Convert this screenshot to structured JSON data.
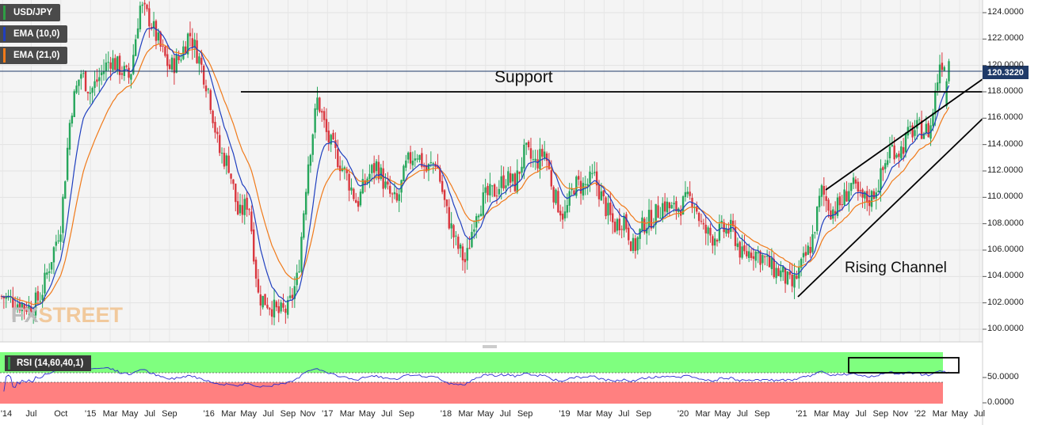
{
  "legend": {
    "symbol": "USD/JPY",
    "ema10": "EMA (10,0)",
    "ema21": "EMA (21,0)",
    "rsi": "RSI (14,60,40,1)"
  },
  "colors": {
    "up": "#26a65b",
    "down": "#d9363e",
    "ema10": "#1f3fbf",
    "ema21": "#f07a1a",
    "rsi_upper_zone": "#7fff7f",
    "rsi_lower_zone": "#ff8080",
    "rsi_line": "#2a2ad0",
    "price_tag": "#1f3a68"
  },
  "last_price": "120.3220",
  "annotations": {
    "support": "Support",
    "rising_channel": "Rising Channel"
  },
  "watermark": {
    "part1": "FX",
    "part2": "STREET"
  },
  "chart_data": [
    {
      "type": "candlestick",
      "title": "USD/JPY",
      "series": [
        {
          "name": "EMA (10,0)"
        },
        {
          "name": "EMA (21,0)"
        }
      ],
      "ylim": [
        98.8,
        125.8
      ],
      "yticks": [
        "100.0000",
        "102.0000",
        "104.0000",
        "106.0000",
        "108.0000",
        "110.0000",
        "112.0000",
        "114.0000",
        "116.0000",
        "118.0000",
        "120.0000",
        "122.0000",
        "124.0000"
      ],
      "xticks": [
        "'14",
        "Jul",
        "Oct",
        "'15",
        "Mar",
        "May",
        "Jul",
        "Sep",
        "'16",
        "Mar",
        "May",
        "Jul",
        "Sep",
        "Nov",
        "'17",
        "Mar",
        "May",
        "Jul",
        "Sep",
        "'18",
        "Mar",
        "May",
        "Jul",
        "Sep",
        "'19",
        "Mar",
        "May",
        "Jul",
        "Sep",
        "'20",
        "Mar",
        "May",
        "Jul",
        "Sep",
        "'21",
        "Mar",
        "May",
        "Jul",
        "Sep",
        "Nov",
        "'22",
        "Mar",
        "May",
        "Jul"
      ],
      "x_range": [
        "2014-04",
        "2022-07"
      ],
      "close_path": [
        [
          "2014-04",
          102.5
        ],
        [
          "2014-07",
          101.6
        ],
        [
          "2014-08",
          102.6
        ],
        [
          "2014-10",
          108.0
        ],
        [
          "2014-11",
          116.5
        ],
        [
          "2014-12",
          119.5
        ],
        [
          "2015-01",
          118.0
        ],
        [
          "2015-03",
          120.5
        ],
        [
          "2015-05",
          119.0
        ],
        [
          "2015-06",
          124.5
        ],
        [
          "2015-07",
          123.5
        ],
        [
          "2015-08",
          121.5
        ],
        [
          "2015-09",
          119.8
        ],
        [
          "2015-10",
          120.5
        ],
        [
          "2015-11",
          122.5
        ],
        [
          "2015-12",
          120.5
        ],
        [
          "2016-01",
          118.0
        ],
        [
          "2016-02",
          113.5
        ],
        [
          "2016-03",
          112.5
        ],
        [
          "2016-04",
          108.5
        ],
        [
          "2016-05",
          109.8
        ],
        [
          "2016-06",
          102.5
        ],
        [
          "2016-07",
          102.0
        ],
        [
          "2016-08",
          101.2
        ],
        [
          "2016-09",
          101.5
        ],
        [
          "2016-10",
          104.0
        ],
        [
          "2016-11",
          112.5
        ],
        [
          "2016-12",
          117.5
        ],
        [
          "2017-01",
          114.5
        ],
        [
          "2017-02",
          113.0
        ],
        [
          "2017-03",
          111.5
        ],
        [
          "2017-04",
          109.5
        ],
        [
          "2017-05",
          111.5
        ],
        [
          "2017-06",
          112.5
        ],
        [
          "2017-07",
          110.5
        ],
        [
          "2017-08",
          109.5
        ],
        [
          "2017-09",
          112.5
        ],
        [
          "2017-10",
          113.5
        ],
        [
          "2017-11",
          112.0
        ],
        [
          "2017-12",
          112.8
        ],
        [
          "2018-01",
          109.0
        ],
        [
          "2018-02",
          106.5
        ],
        [
          "2018-03",
          105.0
        ],
        [
          "2018-04",
          109.0
        ],
        [
          "2018-05",
          110.0
        ],
        [
          "2018-06",
          110.5
        ],
        [
          "2018-07",
          111.5
        ],
        [
          "2018-08",
          111.0
        ],
        [
          "2018-09",
          113.5
        ],
        [
          "2018-10",
          112.5
        ],
        [
          "2018-11",
          113.5
        ],
        [
          "2018-12",
          110.0
        ],
        [
          "2019-01",
          108.5
        ],
        [
          "2019-02",
          111.0
        ],
        [
          "2019-03",
          110.8
        ],
        [
          "2019-04",
          111.5
        ],
        [
          "2019-05",
          109.5
        ],
        [
          "2019-06",
          107.8
        ],
        [
          "2019-07",
          108.5
        ],
        [
          "2019-08",
          106.0
        ],
        [
          "2019-09",
          108.0
        ],
        [
          "2019-10",
          108.5
        ],
        [
          "2019-11",
          109.5
        ],
        [
          "2019-12",
          109.0
        ],
        [
          "2020-01",
          109.5
        ],
        [
          "2020-02",
          110.0
        ],
        [
          "2020-03",
          107.5
        ],
        [
          "2020-04",
          107.0
        ],
        [
          "2020-05",
          107.5
        ],
        [
          "2020-06",
          107.5
        ],
        [
          "2020-07",
          105.5
        ],
        [
          "2020-08",
          106.0
        ],
        [
          "2020-09",
          105.5
        ],
        [
          "2020-10",
          104.6
        ],
        [
          "2020-11",
          104.2
        ],
        [
          "2020-12",
          103.2
        ],
        [
          "2021-01",
          104.8
        ],
        [
          "2021-02",
          106.5
        ],
        [
          "2021-03",
          110.5
        ],
        [
          "2021-04",
          109.0
        ],
        [
          "2021-05",
          109.5
        ],
        [
          "2021-06",
          111.0
        ],
        [
          "2021-07",
          109.8
        ],
        [
          "2021-08",
          109.9
        ],
        [
          "2021-09",
          111.5
        ],
        [
          "2021-10",
          113.8
        ],
        [
          "2021-11",
          113.5
        ],
        [
          "2021-12",
          115.0
        ],
        [
          "2022-01",
          115.2
        ],
        [
          "2022-02",
          115.0
        ],
        [
          "2022-03",
          120.3
        ]
      ],
      "last_value": 120.322
    },
    {
      "type": "line",
      "title": "RSI (14,60,40,1)",
      "ylim": [
        0,
        100
      ],
      "yticks": [
        "50.0000",
        "0.0000"
      ],
      "upper_band": 60,
      "lower_band": 40
    }
  ]
}
